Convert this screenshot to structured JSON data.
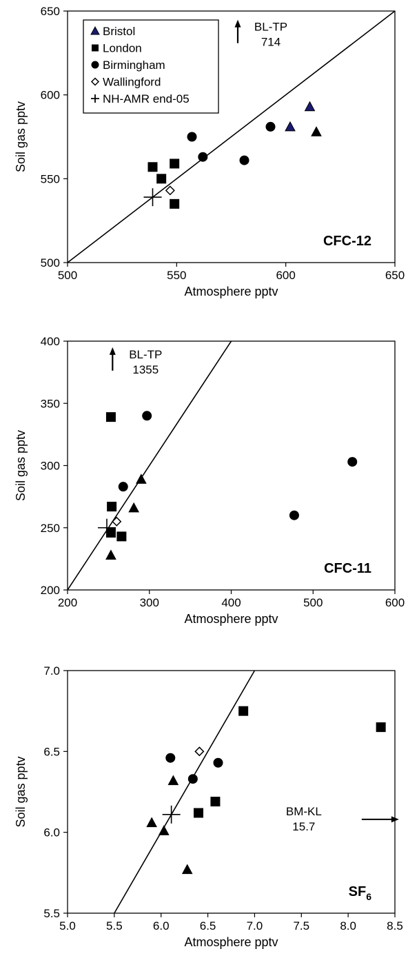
{
  "chart_data": [
    {
      "type": "scatter",
      "panel_label": "CFC-12",
      "panel_subscript": "",
      "xlabel": "Atmosphere pptv",
      "ylabel": "Soil gas pptv",
      "xlim": [
        500,
        650
      ],
      "ylim": [
        500,
        650
      ],
      "x_ticks": [
        500,
        550,
        600,
        650
      ],
      "y_ticks": [
        500,
        550,
        600,
        650
      ],
      "tick_decimals": 0,
      "grid": false,
      "line": {
        "points": [
          [
            500,
            500
          ],
          [
            650,
            650
          ]
        ],
        "label": "1:1"
      },
      "legend": {
        "position": "top-left",
        "entries": [
          {
            "name": "Bristol",
            "marker": "triangle-blue"
          },
          {
            "name": "London",
            "marker": "square"
          },
          {
            "name": "Birmingham",
            "marker": "circle"
          },
          {
            "name": "Wallingford",
            "marker": "diamond-open"
          },
          {
            "name": "NH-AMR end-05",
            "marker": "plus"
          }
        ]
      },
      "series": [
        {
          "name": "Bristol",
          "marker": "triangle-blue",
          "points": [
            [
              602,
              581
            ],
            [
              611,
              593
            ]
          ]
        },
        {
          "name": "Bristol",
          "marker": "triangle",
          "points": [
            [
              614,
              578
            ]
          ]
        },
        {
          "name": "London",
          "marker": "square",
          "points": [
            [
              539,
              557
            ],
            [
              543,
              550
            ],
            [
              549,
              559
            ],
            [
              549,
              535
            ]
          ]
        },
        {
          "name": "Birmingham",
          "marker": "circle",
          "points": [
            [
              557,
              575
            ],
            [
              562,
              563
            ],
            [
              581,
              561
            ],
            [
              593,
              581
            ]
          ]
        },
        {
          "name": "Wallingford",
          "marker": "diamond-open",
          "points": [
            [
              547,
              543
            ]
          ]
        },
        {
          "name": "NH-AMR end-05",
          "marker": "plus",
          "points": [
            [
              539,
              539
            ]
          ]
        }
      ],
      "annotations": [
        {
          "lines": [
            "BL-TP",
            "714"
          ],
          "arrow": "up",
          "x": 578,
          "y": 644
        }
      ]
    },
    {
      "type": "scatter",
      "panel_label": "CFC-11",
      "panel_subscript": "",
      "xlabel": "Atmosphere pptv",
      "ylabel": "Soil gas pptv",
      "xlim": [
        200,
        600
      ],
      "ylim": [
        200,
        400
      ],
      "x_ticks": [
        200,
        300,
        400,
        500,
        600
      ],
      "y_ticks": [
        200,
        250,
        300,
        350,
        400
      ],
      "tick_decimals": 0,
      "grid": false,
      "line": {
        "points": [
          [
            200,
            200
          ],
          [
            400,
            400
          ]
        ],
        "label": "1:1"
      },
      "series": [
        {
          "name": "Bristol",
          "marker": "triangle",
          "points": [
            [
              253,
              228
            ],
            [
              281,
              266
            ],
            [
              290,
              289
            ]
          ]
        },
        {
          "name": "London",
          "marker": "square",
          "points": [
            [
              253,
              339
            ],
            [
              254,
              267
            ],
            [
              253,
              246
            ],
            [
              266,
              243
            ]
          ]
        },
        {
          "name": "Birmingham",
          "marker": "circle",
          "points": [
            [
              297,
              340
            ],
            [
              268,
              283
            ],
            [
              477,
              260
            ],
            [
              548,
              303
            ]
          ]
        },
        {
          "name": "Wallingford",
          "marker": "diamond-open",
          "points": [
            [
              260,
              255
            ]
          ]
        },
        {
          "name": "NH-AMR end-05",
          "marker": "plus",
          "points": [
            [
              248,
              250
            ]
          ]
        }
      ],
      "annotations": [
        {
          "lines": [
            "BL-TP",
            "1355"
          ],
          "arrow": "up",
          "x": 255,
          "y": 394
        }
      ]
    },
    {
      "type": "scatter",
      "panel_label": "SF",
      "panel_subscript": "6",
      "xlabel": "Atmosphere pptv",
      "ylabel": "Soil gas pptv",
      "xlim": [
        5.0,
        8.5
      ],
      "ylim": [
        5.5,
        7.0
      ],
      "x_ticks": [
        5.0,
        5.5,
        6.0,
        6.5,
        7.0,
        7.5,
        8.0,
        8.5
      ],
      "y_ticks": [
        5.5,
        6.0,
        6.5,
        7.0
      ],
      "tick_decimals": 1,
      "grid": false,
      "line": {
        "points": [
          [
            5.5,
            5.5
          ],
          [
            7.0,
            7.0
          ]
        ],
        "label": "1:1"
      },
      "series": [
        {
          "name": "Bristol",
          "marker": "triangle",
          "points": [
            [
              6.13,
              6.32
            ],
            [
              5.9,
              6.06
            ],
            [
              6.28,
              5.77
            ]
          ]
        },
        {
          "name": "London",
          "marker": "square",
          "points": [
            [
              6.88,
              6.75
            ],
            [
              8.35,
              6.65
            ],
            [
              6.58,
              6.19
            ],
            [
              6.4,
              6.12
            ]
          ]
        },
        {
          "name": "Birmingham",
          "marker": "circle",
          "points": [
            [
              6.1,
              6.46
            ],
            [
              6.34,
              6.33
            ],
            [
              6.61,
              6.43
            ]
          ]
        },
        {
          "name": "Wallingford",
          "marker": "diamond-open",
          "points": [
            [
              6.41,
              6.5
            ]
          ]
        },
        {
          "name": "Bristol",
          "marker": "triangle",
          "points": [
            [
              6.03,
              6.01
            ]
          ]
        },
        {
          "name": "NH-AMR end-05",
          "marker": "plus",
          "points": [
            [
              6.11,
              6.11
            ]
          ]
        }
      ],
      "annotations": [
        {
          "lines": [
            "BM-KL",
            "15.7"
          ],
          "arrow": "right",
          "x": 8.16,
          "y": 6.08
        }
      ]
    }
  ]
}
